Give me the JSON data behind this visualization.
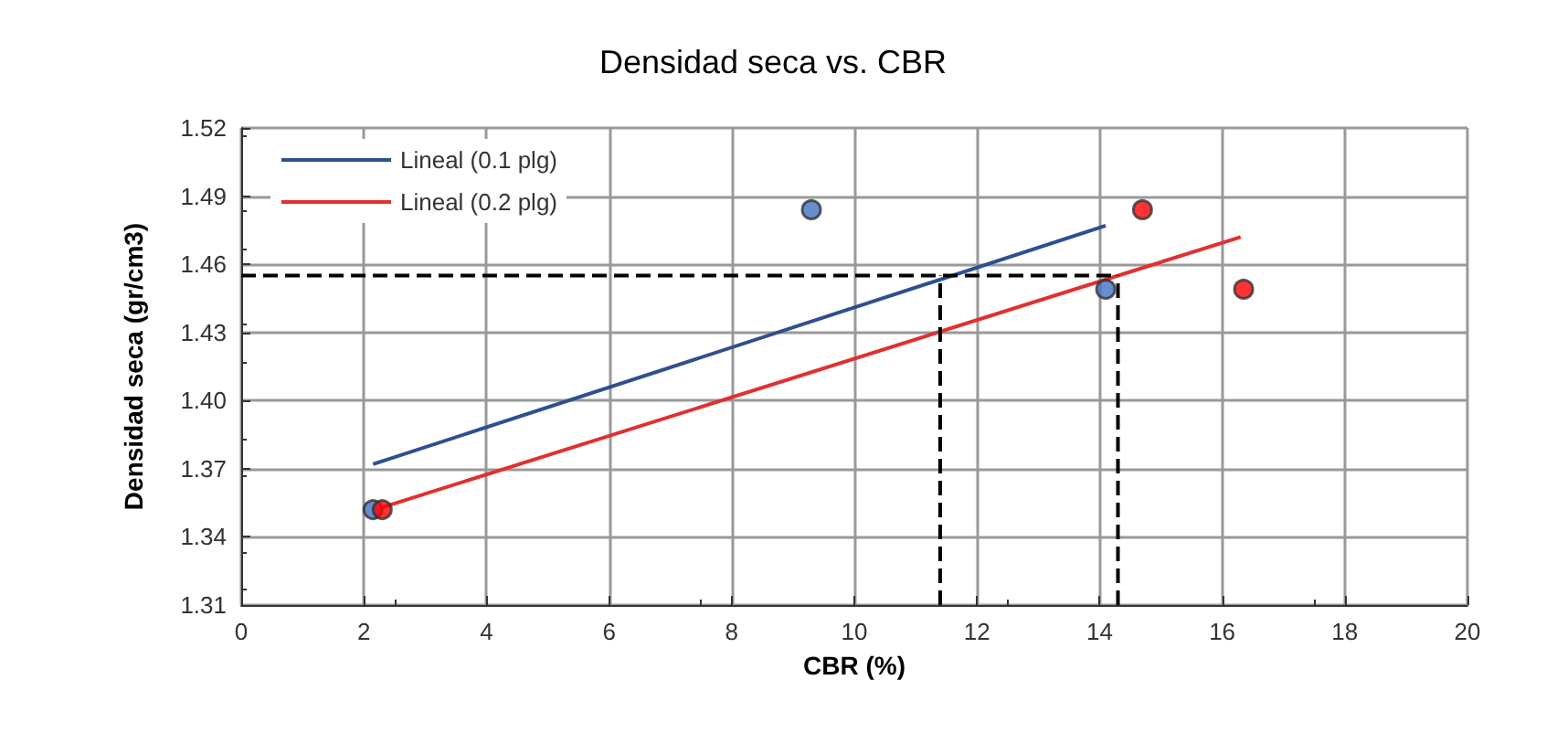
{
  "chart_data": {
    "type": "scatter",
    "title": "Densidad seca vs. CBR",
    "xlabel": "CBR (%)",
    "ylabel": "Densidad seca (gr/cm3)",
    "xlim": [
      0,
      20
    ],
    "xticks": [
      0,
      2,
      4,
      6,
      8,
      10,
      12,
      14,
      16,
      18,
      20
    ],
    "ylim": [
      1.31,
      1.52
    ],
    "yticks": [
      1.31,
      1.34,
      1.37,
      {
        "value": 1.4,
        "label": "1.40"
      },
      1.43,
      1.46,
      1.49,
      1.52
    ],
    "grid": true,
    "legend": "top left",
    "marker": "circle",
    "series": [
      {
        "color": "#4472c4",
        "x": [
          2.15,
          9.3,
          14.1
        ],
        "values": [
          1.352,
          1.484,
          1.449
        ]
      },
      {
        "color": "#ff0000",
        "x": [
          2.3,
          14.7,
          16.35
        ],
        "values": [
          1.352,
          1.484,
          1.449
        ]
      },
      {
        "type": "line",
        "name": "Lineal (0.1 plg)",
        "color": "#2f4f8f",
        "marker": "none",
        "x": [
          2.15,
          14.1
        ],
        "values": [
          1.372,
          1.477
        ]
      },
      {
        "type": "line",
        "name": "Lineal (0.2 plg)",
        "color": "#e03030",
        "marker": "none",
        "x": [
          2.3,
          16.3
        ],
        "values": [
          1.353,
          1.472
        ]
      },
      {
        "type": "line",
        "color": "#000000",
        "marker": "none",
        "line_style": "dashed",
        "x": [
          0,
          14.3
        ],
        "values": [
          1.455,
          1.455
        ]
      },
      {
        "type": "line",
        "color": "#000000",
        "marker": "none",
        "line_style": "dashed",
        "x": [
          11.4,
          11.4
        ],
        "values": [
          1.31,
          1.455
        ]
      },
      {
        "type": "line",
        "color": "#000000",
        "marker": "none",
        "line_style": "dashed",
        "x": [
          14.3,
          14.3
        ],
        "values": [
          1.31,
          1.455
        ]
      }
    ]
  }
}
